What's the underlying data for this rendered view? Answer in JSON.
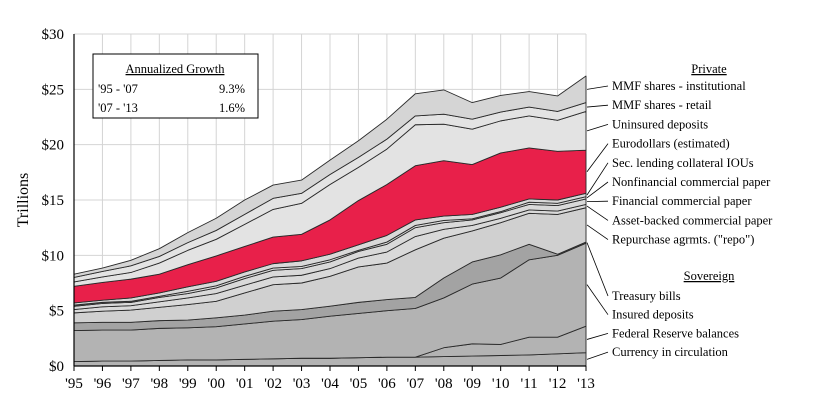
{
  "chart_data": {
    "type": "area",
    "stacked": true,
    "title": "",
    "xlabel": "",
    "ylabel": "Trillions",
    "ylim": [
      0,
      30
    ],
    "y_ticks": [
      0,
      5,
      10,
      15,
      20,
      25,
      30
    ],
    "y_tick_labels": [
      "$0",
      "$5",
      "$10",
      "$15",
      "$20",
      "$25",
      "$30"
    ],
    "categories": [
      "'95",
      "'96",
      "'97",
      "'98",
      "'99",
      "'00",
      "'01",
      "'02",
      "'03",
      "'04",
      "'05",
      "'06",
      "'07",
      "'08",
      "'09",
      "'10",
      "'11",
      "'12",
      "'13"
    ],
    "grid": true,
    "series": [
      {
        "name": "Currency in circulation",
        "color": "#b3b3b3",
        "values": [
          0.4,
          0.45,
          0.45,
          0.5,
          0.55,
          0.55,
          0.6,
          0.65,
          0.7,
          0.7,
          0.75,
          0.8,
          0.8,
          0.85,
          0.9,
          0.95,
          1.0,
          1.1,
          1.2
        ]
      },
      {
        "name": "Federal Reserve balances",
        "color": "#b3b3b3",
        "values": [
          0.0,
          0.0,
          0.0,
          0.0,
          0.0,
          0.0,
          0.0,
          0.0,
          0.0,
          0.0,
          0.0,
          0.0,
          0.0,
          0.8,
          1.1,
          1.0,
          1.6,
          1.5,
          2.4
        ]
      },
      {
        "name": "Insured deposits",
        "color": "#b3b3b3",
        "values": [
          2.8,
          2.8,
          2.8,
          2.9,
          2.9,
          3.0,
          3.2,
          3.4,
          3.5,
          3.8,
          4.0,
          4.2,
          4.4,
          4.5,
          5.4,
          6.0,
          7.0,
          7.4,
          7.5
        ]
      },
      {
        "name": "Treasury bills",
        "color": "#a3a3a3",
        "values": [
          0.7,
          0.7,
          0.7,
          0.7,
          0.7,
          0.8,
          0.8,
          0.9,
          0.9,
          0.9,
          1.0,
          1.0,
          1.0,
          1.8,
          2.0,
          2.1,
          1.4,
          0.1,
          0.1
        ]
      },
      {
        "name": "Repurchase agrmts. (\"repo\")",
        "color": "#d0d0d0",
        "values": [
          0.9,
          1.0,
          1.1,
          1.2,
          1.4,
          1.5,
          2.0,
          2.4,
          2.4,
          2.7,
          3.2,
          3.3,
          4.3,
          3.6,
          2.8,
          2.9,
          2.8,
          3.6,
          3.1
        ]
      },
      {
        "name": "Asset-backed commercial paper",
        "color": "#d9d9d9",
        "values": [
          0.3,
          0.4,
          0.4,
          0.5,
          0.6,
          0.7,
          0.7,
          0.7,
          0.7,
          0.7,
          0.8,
          1.0,
          1.2,
          0.8,
          0.5,
          0.4,
          0.3,
          0.3,
          0.3
        ]
      },
      {
        "name": "Financial commercial paper",
        "color": "#d9d9d9",
        "values": [
          0.3,
          0.3,
          0.3,
          0.4,
          0.4,
          0.5,
          0.6,
          0.6,
          0.6,
          0.6,
          0.6,
          0.7,
          0.8,
          0.6,
          0.5,
          0.5,
          0.5,
          0.5,
          0.5
        ]
      },
      {
        "name": "Nonfinancial commercial paper",
        "color": "#d9d9d9",
        "values": [
          0.1,
          0.1,
          0.1,
          0.1,
          0.2,
          0.2,
          0.2,
          0.2,
          0.2,
          0.2,
          0.1,
          0.2,
          0.2,
          0.2,
          0.1,
          0.1,
          0.2,
          0.2,
          0.2
        ]
      },
      {
        "name": "Sec. lending collateral IOUs",
        "color": "#d9d9d9",
        "values": [
          0.2,
          0.2,
          0.3,
          0.3,
          0.4,
          0.4,
          0.4,
          0.4,
          0.5,
          0.5,
          0.5,
          0.6,
          0.5,
          0.4,
          0.4,
          0.4,
          0.3,
          0.3,
          0.3
        ]
      },
      {
        "name": "Eurodollars (estimated)",
        "color": "#e8204a",
        "values": [
          1.5,
          1.6,
          1.7,
          1.7,
          2.0,
          2.3,
          2.3,
          2.4,
          2.4,
          3.1,
          4.0,
          4.6,
          4.9,
          5.0,
          4.5,
          4.9,
          4.6,
          4.4,
          3.9
        ]
      },
      {
        "name": "Uninsured deposits",
        "color": "#e3e3e3",
        "values": [
          0.4,
          0.5,
          0.6,
          1.0,
          1.3,
          1.5,
          2.0,
          2.5,
          2.8,
          3.2,
          3.0,
          3.2,
          3.7,
          3.3,
          3.2,
          2.9,
          2.9,
          2.8,
          3.5
        ]
      },
      {
        "name": "MMF shares - retail",
        "color": "#e3e3e3",
        "values": [
          0.4,
          0.5,
          0.6,
          0.6,
          0.7,
          0.8,
          0.9,
          1.0,
          0.9,
          0.9,
          0.9,
          0.9,
          0.8,
          0.9,
          0.9,
          0.8,
          0.8,
          0.8,
          0.8
        ]
      },
      {
        "name": "MMF shares - institutional",
        "color": "#d5d5d5",
        "values": [
          0.3,
          0.3,
          0.5,
          0.7,
          0.9,
          1.1,
          1.3,
          1.2,
          1.2,
          1.3,
          1.5,
          1.8,
          2.0,
          2.2,
          1.5,
          1.5,
          1.4,
          1.4,
          2.4
        ]
      }
    ],
    "legend_groups": [
      {
        "title": "Private",
        "labels": [
          "MMF shares - institutional",
          "MMF shares - retail",
          "Uninsured deposits",
          "Eurodollars (estimated)",
          "Sec. lending collateral IOUs",
          "Nonfinancial commercial paper",
          "Financial commercial paper",
          "Asset-backed commercial paper",
          "Repurchase agrmts. (\"repo\")"
        ]
      },
      {
        "title": "Sovereign",
        "labels": [
          "Treasury bills",
          "Insured deposits",
          "Federal Reserve balances",
          "Currency in circulation"
        ]
      }
    ],
    "annotation_box": {
      "title": "Annualized Growth",
      "rows": [
        {
          "period": "'95 - '07",
          "value": "9.3%"
        },
        {
          "period": "'07 - '13",
          "value": "1.6%"
        }
      ]
    },
    "legend_position": "right"
  }
}
